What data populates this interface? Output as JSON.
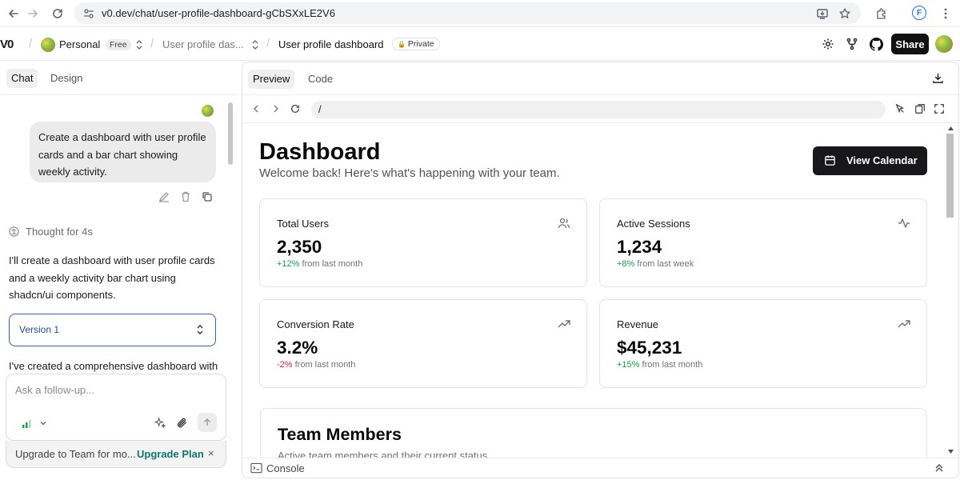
{
  "browser": {
    "url": "v0.dev/chat/user-profile-dashboard-gCbSXxLE2V6",
    "profile_initial": "F"
  },
  "header": {
    "logo": "V0",
    "workspace": "Personal",
    "plan_badge": "Free",
    "project_dropdown": "User profile das...",
    "title": "User profile dashboard",
    "visibility": "Private",
    "share_label": "Share"
  },
  "left": {
    "tabs": [
      "Chat",
      "Design"
    ],
    "user_message": "Create a dashboard with user profile cards and a bar chart showing weekly activity.",
    "thought": "Thought for 4s",
    "assistant_reply": "I'll create a dashboard with user profile cards and a weekly activity bar chart using shadcn/ui components.",
    "version_label": "Version 1",
    "followup_text": "I've created a comprehensive dashboard with",
    "input_placeholder": "Ask a follow-up...",
    "upgrade_text": "Upgrade to Team for mo...",
    "upgrade_link": "Upgrade Plan"
  },
  "preview": {
    "tabs": [
      "Preview",
      "Code"
    ],
    "path": "/",
    "console_label": "Console",
    "dashboard": {
      "title": "Dashboard",
      "subtitle": "Welcome back! Here's what's happening with your team.",
      "calendar_button": "View Calendar",
      "stats": [
        {
          "title": "Total Users",
          "value": "2,350",
          "delta": "+12%",
          "delta_suffix": " from last month",
          "icon": "users-icon"
        },
        {
          "title": "Active Sessions",
          "value": "1,234",
          "delta": "+8%",
          "delta_suffix": " from last week",
          "icon": "activity-icon"
        },
        {
          "title": "Conversion Rate",
          "value": "3.2%",
          "delta": "-2%",
          "delta_suffix": " from last month",
          "icon": "trending-up-icon"
        },
        {
          "title": "Revenue",
          "value": "$45,231",
          "delta": "+15%",
          "delta_suffix": " from last month",
          "icon": "trending-up-icon"
        }
      ],
      "team": {
        "title": "Team Members",
        "subtitle": "Active team members and their current status"
      }
    }
  },
  "colors": {
    "positive": "#16a34a",
    "negative": "#dc2626",
    "primary_dark": "#18181b",
    "select_border": "#2f5fd0",
    "upgrade_link": "#0f766e"
  }
}
